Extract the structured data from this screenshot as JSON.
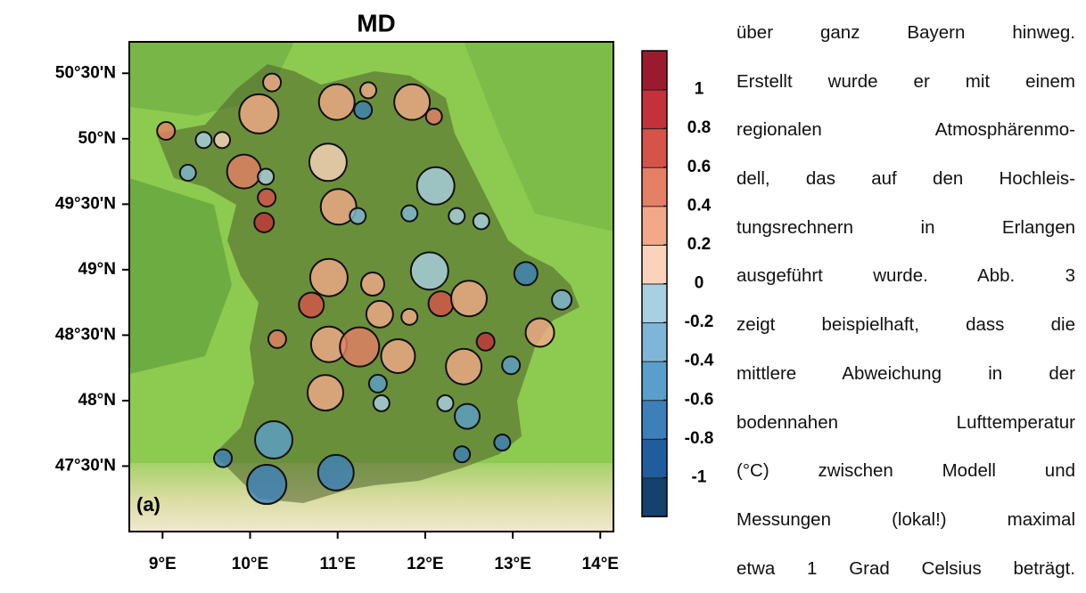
{
  "chart_data": {
    "type": "scatter",
    "title": "MD",
    "panel_label": "(a)",
    "xlim": [
      8.62,
      14.15
    ],
    "ylim": [
      47.0,
      50.74
    ],
    "xticks": [
      {
        "value": 9,
        "label": "9°E"
      },
      {
        "value": 10,
        "label": "10°E"
      },
      {
        "value": 11,
        "label": "11°E"
      },
      {
        "value": 12,
        "label": "12°E"
      },
      {
        "value": 13,
        "label": "13°E"
      },
      {
        "value": 14,
        "label": "14°E"
      }
    ],
    "yticks": [
      {
        "value": 47.5,
        "label": "47°30'N"
      },
      {
        "value": 48,
        "label": "48°N"
      },
      {
        "value": 48.5,
        "label": "48°30'N"
      },
      {
        "value": 49,
        "label": "49°N"
      },
      {
        "value": 49.5,
        "label": "49°30'N"
      },
      {
        "value": 50,
        "label": "50°N"
      },
      {
        "value": 50.5,
        "label": "50°30'N"
      }
    ],
    "colorbar": {
      "clim": [
        -1.2,
        1.2
      ],
      "ticks": [
        -1,
        -0.8,
        -0.6,
        -0.4,
        -0.2,
        0,
        0.2,
        0.4,
        0.6,
        0.8,
        1
      ],
      "colors": [
        "#14416e",
        "#1f5d9c",
        "#3c7fb9",
        "#5a9ecb",
        "#7fb6d8",
        "#a9cfe3",
        "#fbd3bd",
        "#f2a98a",
        "#e57f66",
        "#d6534a",
        "#c3313a",
        "#9b1b2e"
      ]
    },
    "x": [
      9.04,
      9.47,
      9.29,
      9.68,
      10.1,
      10.25,
      10.99,
      11.35,
      11.29,
      11.85,
      12.1,
      9.93,
      10.18,
      10.19,
      10.16,
      10.89,
      11.01,
      11.23,
      12.12,
      11.82,
      12.36,
      12.64,
      12.05,
      10.9,
      11.4,
      10.7,
      11.48,
      12.18,
      12.5,
      13.15,
      13.56,
      13.31,
      12.69,
      10.9,
      11.25,
      11.69,
      12.44,
      10.86,
      11.46,
      10.27,
      10.98,
      10.19,
      12.48,
      12.98,
      9.69,
      12.42,
      12.88,
      10.31,
      11.82,
      11.5,
      12.23
    ],
    "y": [
      50.06,
      49.99,
      49.74,
      49.99,
      50.19,
      50.43,
      50.28,
      50.37,
      50.22,
      50.28,
      50.17,
      49.75,
      49.71,
      49.55,
      49.36,
      49.82,
      49.48,
      49.41,
      49.64,
      49.43,
      49.41,
      49.37,
      48.99,
      48.94,
      48.89,
      48.73,
      48.66,
      48.74,
      48.78,
      48.97,
      48.77,
      48.52,
      48.45,
      48.43,
      48.41,
      48.34,
      48.26,
      48.06,
      48.13,
      47.7,
      47.45,
      47.36,
      47.88,
      48.27,
      47.56,
      47.59,
      47.68,
      48.47,
      48.64,
      47.98,
      47.98
    ],
    "values": [
      0.5,
      -0.1,
      -0.3,
      0.1,
      0.3,
      0.3,
      0.3,
      0.3,
      -0.7,
      0.3,
      0.5,
      0.5,
      -0.1,
      0.7,
      0.9,
      0.1,
      0.3,
      -0.3,
      -0.1,
      -0.3,
      -0.1,
      -0.1,
      -0.1,
      0.3,
      0.3,
      0.7,
      0.3,
      0.7,
      0.3,
      -0.7,
      -0.3,
      0.3,
      0.9,
      0.3,
      0.5,
      0.3,
      0.3,
      0.3,
      -0.5,
      -0.5,
      -0.7,
      -0.7,
      -0.5,
      -0.5,
      -0.7,
      -0.7,
      -0.7,
      0.5,
      0.3,
      -0.1,
      -0.1
    ],
    "sizes": [
      10,
      9,
      9,
      9,
      22,
      10,
      20,
      9,
      10,
      20,
      9,
      19,
      9,
      10,
      11,
      21,
      20,
      9,
      21,
      9,
      9,
      9,
      21,
      21,
      13,
      14,
      15,
      14,
      20,
      13,
      11,
      16,
      10,
      20,
      22,
      19,
      20,
      20,
      10,
      21,
      20,
      22,
      14,
      10,
      10,
      9,
      9,
      10,
      9,
      9,
      9
    ]
  },
  "text": {
    "lines": [
      "über ganz Bayern hinweg.",
      "Erstellt wurde er mit einem",
      "regionalen Atmosphärenmo-",
      "dell, das auf den Hochleis-",
      "tungsrechnern in Erlangen",
      "ausgeführt wurde. Abb. 3",
      "zeigt beispielhaft, dass die",
      "mittlere Abweichung in der",
      "bodennahen Lufttemperatur",
      "(°C) zwischen Modell und",
      "Messungen (lokal!) maximal",
      "etwa 1 Grad Celsius beträgt."
    ]
  }
}
